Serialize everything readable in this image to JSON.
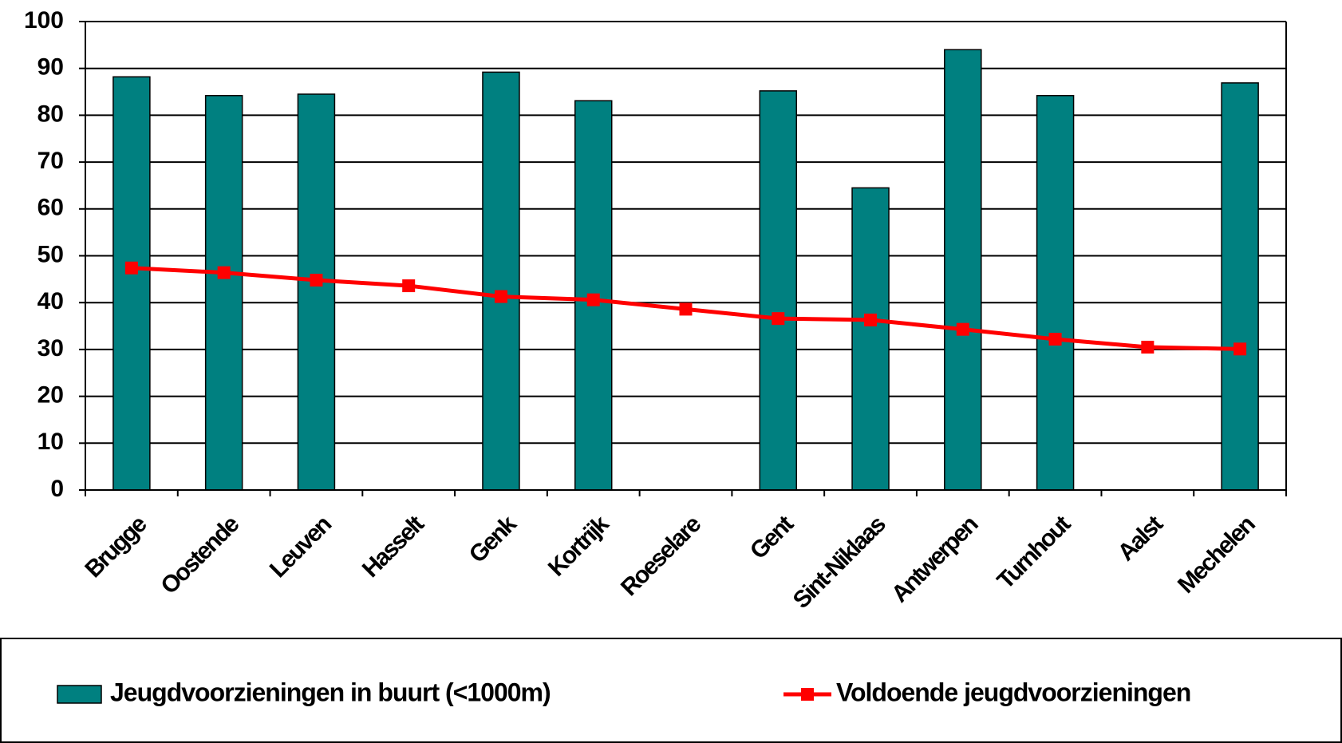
{
  "chart_data": {
    "type": "bar",
    "categories": [
      "Brugge",
      "Oostende",
      "Leuven",
      "Hasselt",
      "Genk",
      "Kortrijk",
      "Roeselare",
      "Gent",
      "Sint-Niklaas",
      "Antwerpen",
      "Turnhout",
      "Aalst",
      "Mechelen"
    ],
    "series": [
      {
        "name": "Jeugdvoorzieningen in buurt (<1000m)",
        "type": "bar",
        "color": "#008080",
        "values": [
          88.2,
          84.2,
          84.5,
          null,
          89.2,
          83.1,
          null,
          85.2,
          64.5,
          94,
          84.2,
          null,
          86.9
        ]
      },
      {
        "name": "Voldoende jeugdvoorzieningen",
        "type": "line",
        "color": "#ff0000",
        "values": [
          47.4,
          46.4,
          44.8,
          43.6,
          41.3,
          40.6,
          38.6,
          36.6,
          36.3,
          34.3,
          32.2,
          30.5,
          30.1
        ]
      }
    ],
    "ylim": [
      0,
      100
    ],
    "yticks": [
      0,
      10,
      20,
      30,
      40,
      50,
      60,
      70,
      80,
      90,
      100
    ],
    "grid": true,
    "legend": "bottom"
  }
}
